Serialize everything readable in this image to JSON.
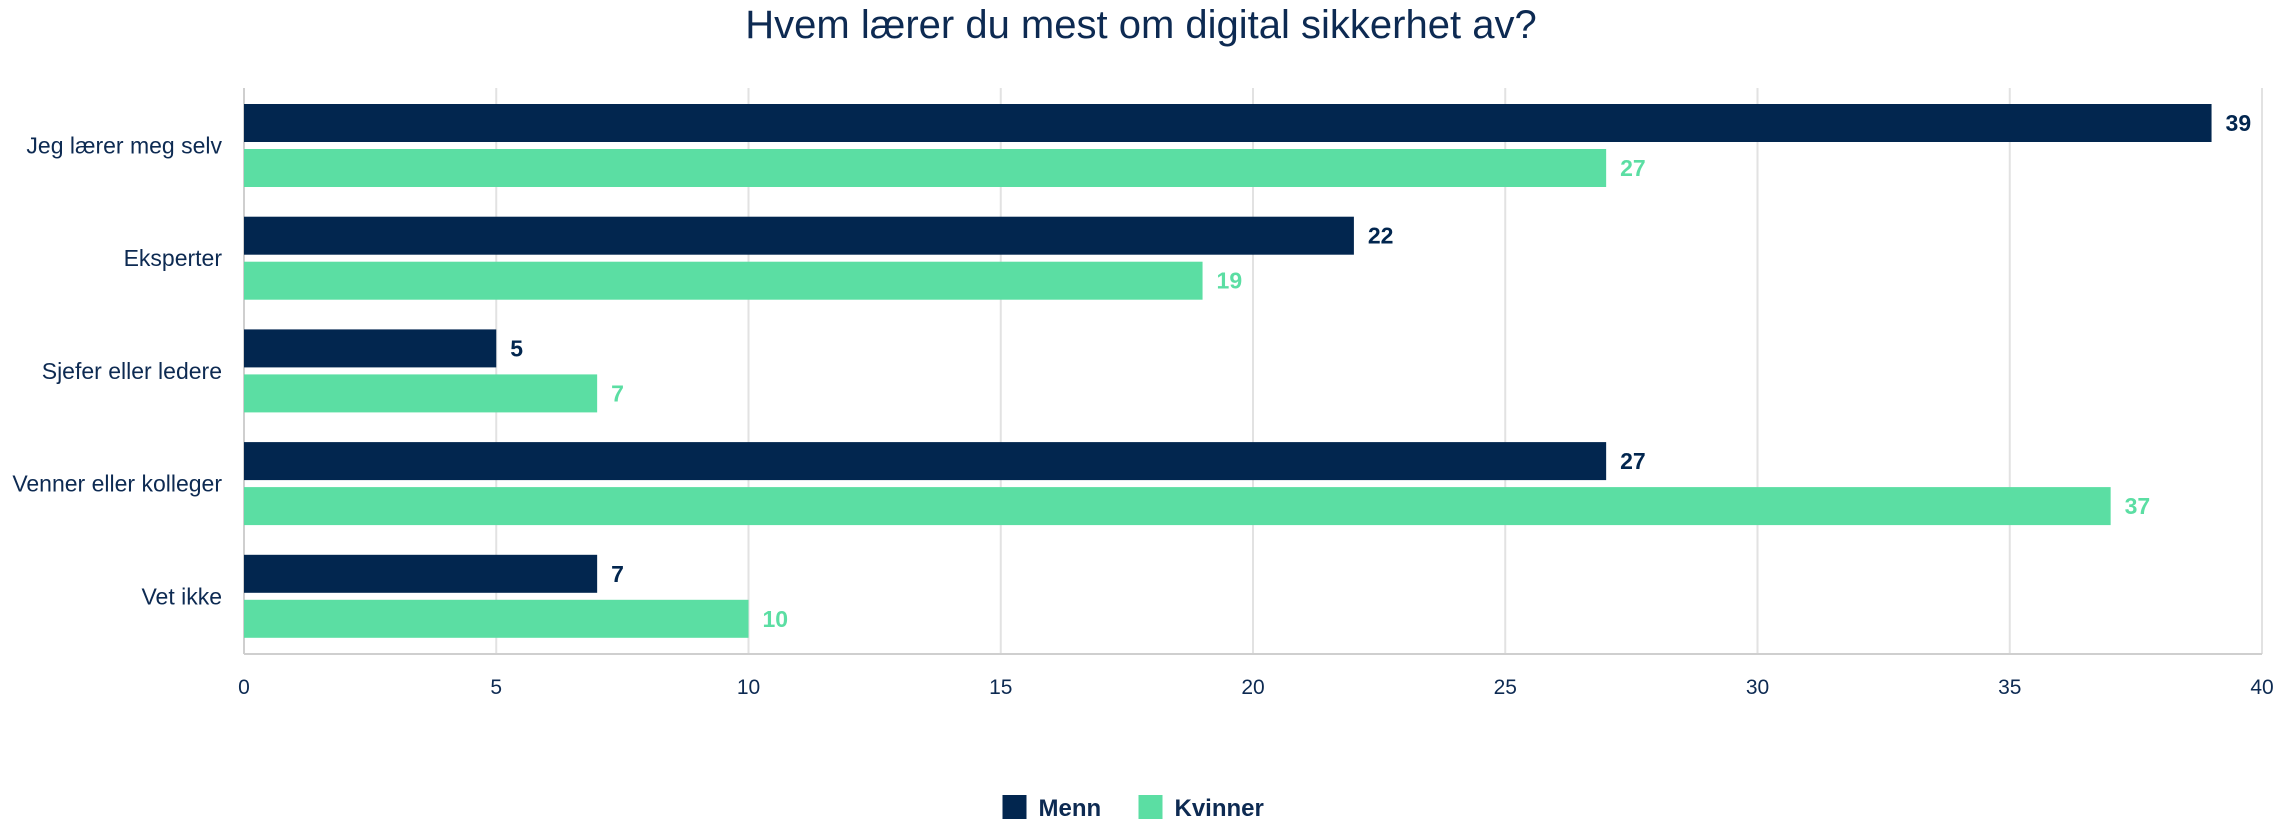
{
  "chart_data": {
    "type": "bar",
    "orientation": "horizontal",
    "title": "Hvem lærer du mest om digital sikkerhet av?",
    "categories": [
      "Jeg lærer meg selv",
      "Eksperter",
      "Sjefer eller ledere",
      "Venner eller kolleger",
      "Vet ikke"
    ],
    "series": [
      {
        "name": "Menn",
        "color": "#02264f",
        "values": [
          39,
          22,
          5,
          27,
          7
        ]
      },
      {
        "name": "Kvinner",
        "color": "#5bdea3",
        "values": [
          27,
          19,
          7,
          37,
          10
        ]
      }
    ],
    "xlim": [
      0,
      40
    ],
    "xticks": [
      0,
      5,
      10,
      15,
      20,
      25,
      30,
      35,
      40
    ],
    "grid": "vertical",
    "legend": "bottom-center",
    "data_labels": true
  }
}
